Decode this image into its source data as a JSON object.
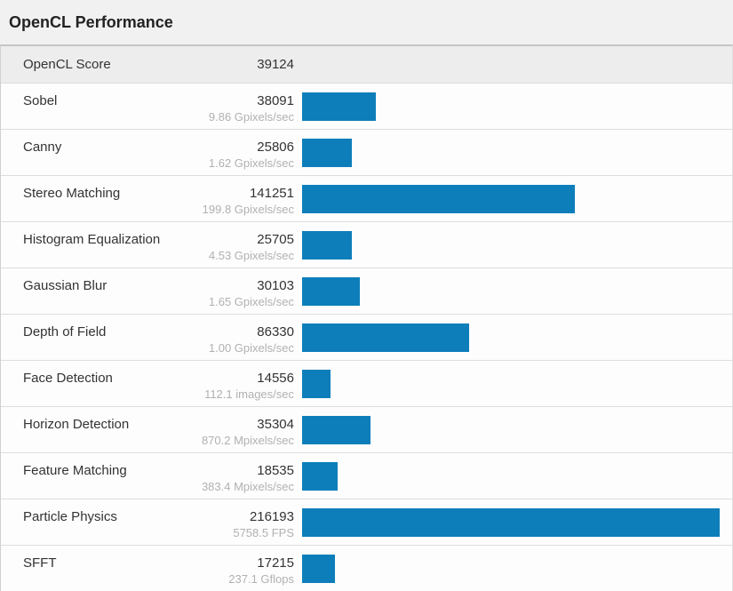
{
  "chart_data": {
    "type": "bar",
    "orientation": "horizontal",
    "title": "OpenCL Performance",
    "score_label": "OpenCL Score",
    "score_value": "39124",
    "bar_color": "#0d7eba",
    "xlim": [
      0,
      216193
    ],
    "grid": false,
    "legend_position": "none",
    "categories": [
      "Sobel",
      "Canny",
      "Stereo Matching",
      "Histogram Equalization",
      "Gaussian Blur",
      "Depth of Field",
      "Face Detection",
      "Horizon Detection",
      "Feature Matching",
      "Particle Physics",
      "SFFT"
    ],
    "values": [
      38091,
      25806,
      141251,
      25705,
      30103,
      86330,
      14556,
      35304,
      18535,
      216193,
      17215
    ],
    "rates": [
      "9.86 Gpixels/sec",
      "1.62 Gpixels/sec",
      "199.8 Gpixels/sec",
      "4.53 Gpixels/sec",
      "1.65 Gpixels/sec",
      "1.00 Gpixels/sec",
      "112.1 images/sec",
      "870.2 Mpixels/sec",
      "383.4 Mpixels/sec",
      "5758.5 FPS",
      "237.1 Gflops"
    ]
  }
}
